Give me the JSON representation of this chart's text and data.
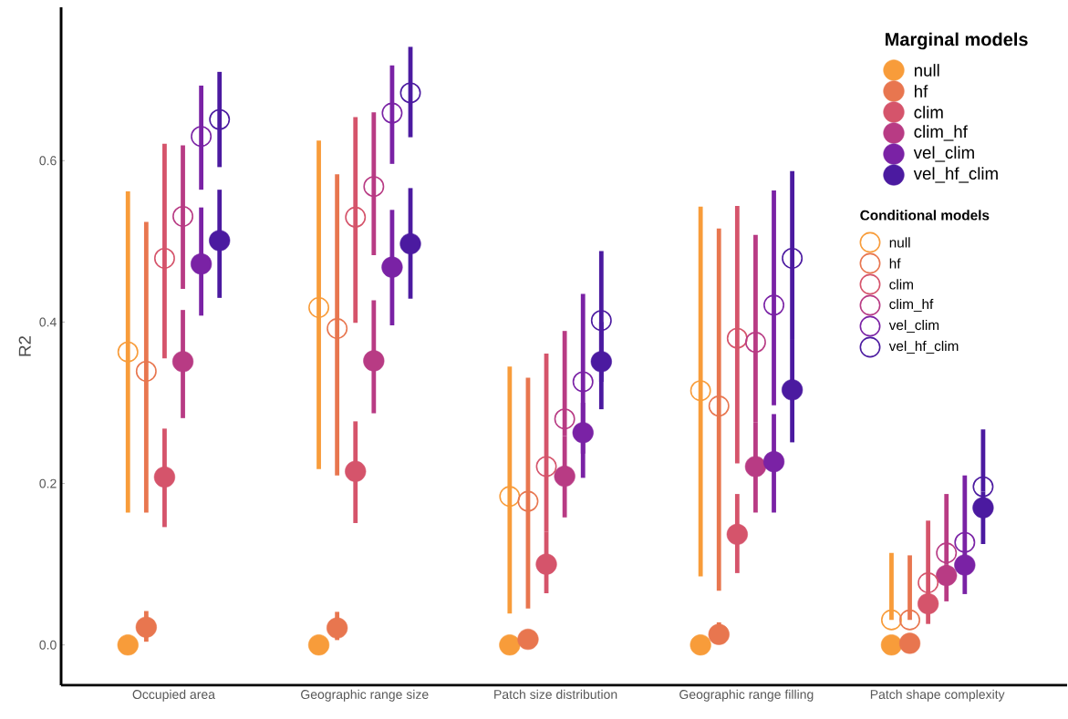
{
  "chart_data": {
    "type": "scatter",
    "ylabel": "R2",
    "legend_title": "Marginal models",
    "annotations": [
      "Conditional models"
    ],
    "legend": "top right",
    "marker": "circle",
    "categories": [
      "Occupied area",
      "Geographic range size",
      "Patch size distribution",
      "Geographic range filling",
      "Patch shape complexity"
    ],
    "ylim": [
      -0.05,
      0.79
    ],
    "yticks": [
      {
        "value": 0,
        "label": "0.0"
      },
      {
        "value": 0.2,
        "label": "0.2"
      },
      {
        "value": 0.4,
        "label": "0.4"
      },
      {
        "value": 0.6,
        "label": "0.6"
      }
    ],
    "series": [
      {
        "name": "null",
        "color": "#f89c3a",
        "values": [
          0,
          0,
          0,
          0,
          0
        ],
        "errors": [
          null,
          null,
          null,
          null,
          null
        ]
      },
      {
        "name": "hf",
        "color": "#e8764f",
        "values": [
          0.022,
          0.021,
          0.007,
          0.013,
          0.002
        ],
        "errors": [
          [
            0.004,
            0.042
          ],
          [
            0.006,
            0.041
          ],
          null,
          [
            0.013,
            0.028
          ],
          null
        ]
      },
      {
        "name": "clim",
        "color": "#d5546b",
        "values": [
          0.208,
          0.215,
          0.1,
          0.137,
          0.051
        ],
        "errors": [
          [
            0.146,
            0.268
          ],
          [
            0.151,
            0.277
          ],
          [
            0.064,
            0.14
          ],
          [
            0.089,
            0.187
          ],
          [
            0.026,
            0.06
          ]
        ]
      },
      {
        "name": "clim_hf",
        "color": "#b83b84",
        "values": [
          0.351,
          0.352,
          0.209,
          0.221,
          0.086
        ],
        "errors": [
          [
            0.281,
            0.415
          ],
          [
            0.287,
            0.427
          ],
          [
            0.158,
            0.259
          ],
          [
            0.164,
            0.276
          ],
          [
            0.054,
            0.1
          ]
        ]
      },
      {
        "name": "vel_clim",
        "color": "#7a22a5",
        "values": [
          0.472,
          0.468,
          0.263,
          0.227,
          0.099
        ],
        "errors": [
          [
            0.408,
            0.542
          ],
          [
            0.396,
            0.539
          ],
          [
            0.207,
            0.3
          ],
          [
            0.164,
            0.286
          ],
          [
            0.063,
            0.11
          ]
        ]
      },
      {
        "name": "vel_hf_clim",
        "color": "#4b1aa0",
        "values": [
          0.501,
          0.497,
          0.351,
          0.316,
          0.17
        ],
        "errors": [
          [
            0.43,
            0.564
          ],
          [
            0.429,
            0.566
          ],
          [
            0.292,
            0.4
          ],
          [
            0.251,
            0.379
          ],
          [
            0.125,
            0.19
          ]
        ]
      },
      {
        "name": "null",
        "color": "#f89c3a",
        "values": [
          0.363,
          0.418,
          0.184,
          0.315,
          0.031
        ],
        "errors": [
          [
            0.164,
            0.562
          ],
          [
            0.218,
            0.625
          ],
          [
            0.039,
            0.345
          ],
          [
            0.085,
            0.543
          ],
          [
            0.031,
            0.114
          ]
        ]
      },
      {
        "name": "hf",
        "color": "#e8764f",
        "values": [
          0.339,
          0.392,
          0.178,
          0.296,
          0.031
        ],
        "errors": [
          [
            0.164,
            0.524
          ],
          [
            0.21,
            0.583
          ],
          [
            0.045,
            0.331
          ],
          [
            0.067,
            0.516
          ],
          [
            0.031,
            0.111
          ]
        ]
      },
      {
        "name": "clim",
        "color": "#d5546b",
        "values": [
          0.479,
          0.53,
          0.221,
          0.38,
          0.077
        ],
        "errors": [
          [
            0.355,
            0.621
          ],
          [
            0.399,
            0.654
          ],
          [
            0.14,
            0.361
          ],
          [
            0.225,
            0.544
          ],
          [
            0.06,
            0.154
          ]
        ]
      },
      {
        "name": "clim_hf",
        "color": "#b83b84",
        "values": [
          0.531,
          0.568,
          0.28,
          0.375,
          0.114
        ],
        "errors": [
          [
            0.441,
            0.619
          ],
          [
            0.483,
            0.66
          ],
          [
            0.259,
            0.389
          ],
          [
            0.276,
            0.508
          ],
          [
            0.1,
            0.187
          ]
        ]
      },
      {
        "name": "vel_clim",
        "color": "#7a22a5",
        "values": [
          0.63,
          0.659,
          0.326,
          0.421,
          0.127
        ],
        "errors": [
          [
            0.564,
            0.693
          ],
          [
            0.596,
            0.718
          ],
          [
            0.237,
            0.435
          ],
          [
            0.297,
            0.563
          ],
          [
            0.11,
            0.21
          ]
        ]
      },
      {
        "name": "vel_hf_clim",
        "color": "#4b1aa0",
        "values": [
          0.651,
          0.684,
          0.402,
          0.479,
          0.196
        ],
        "errors": [
          [
            0.592,
            0.71
          ],
          [
            0.629,
            0.741
          ],
          [
            0.326,
            0.488
          ],
          [
            0.379,
            0.587
          ],
          [
            0.19,
            0.267
          ]
        ]
      }
    ]
  }
}
